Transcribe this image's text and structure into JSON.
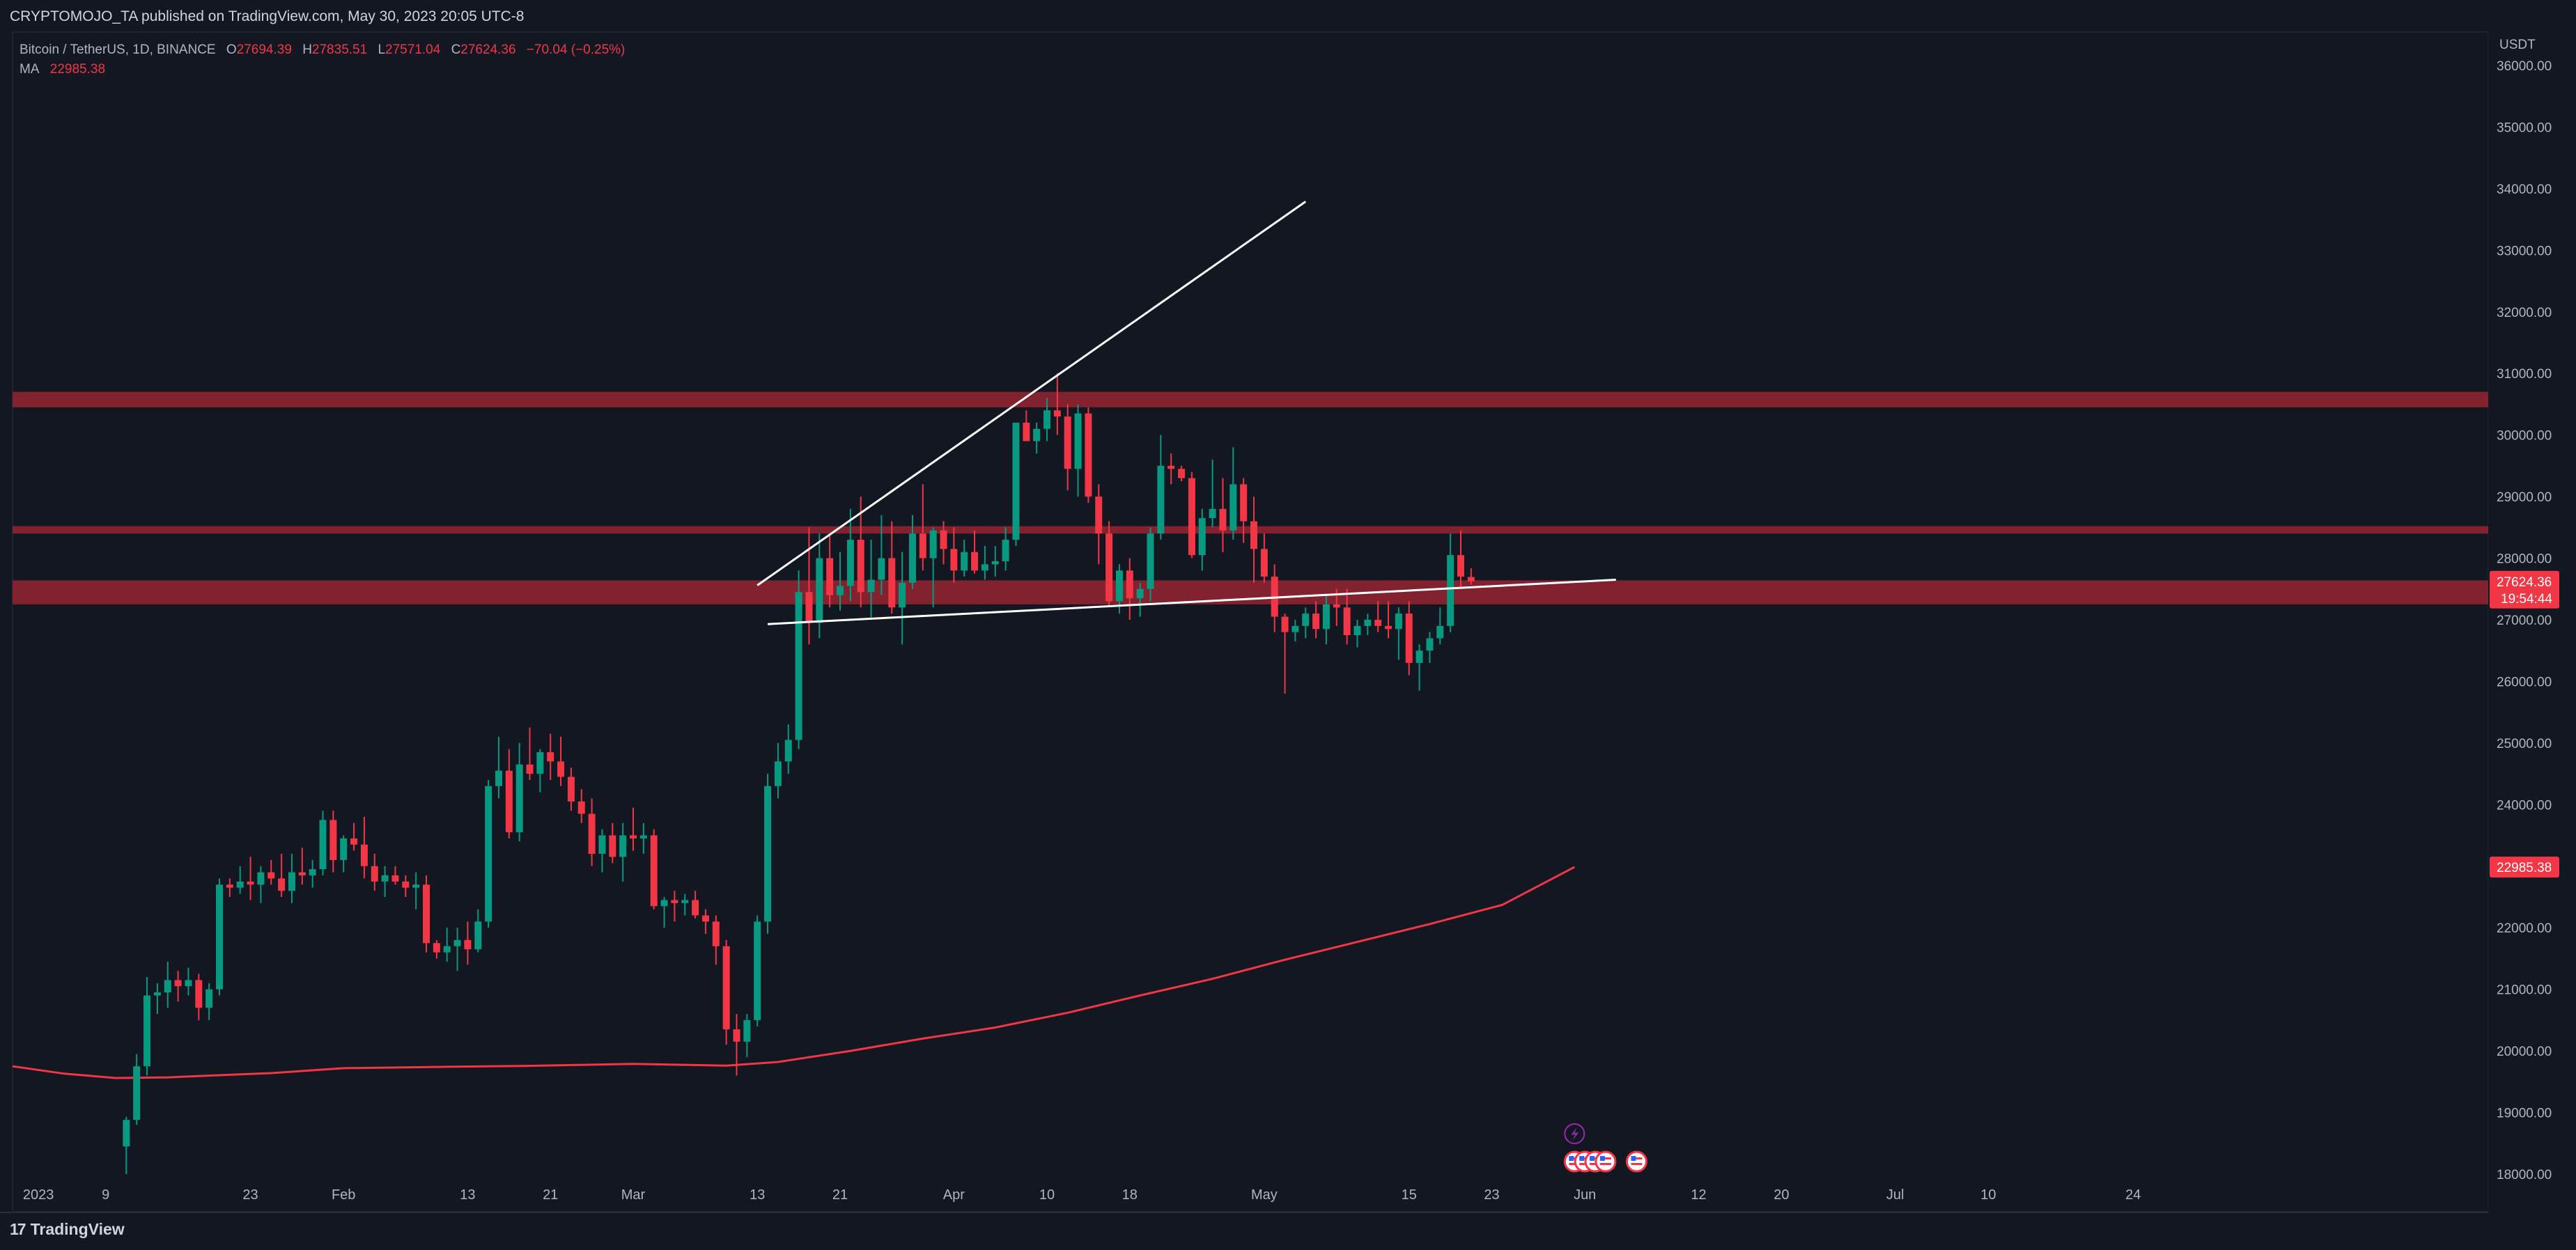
{
  "header": {
    "published_text": "CRYPTOMOJO_TA published on TradingView.com, May 30, 2023 20:05 UTC-8"
  },
  "legend": {
    "symbol": "Bitcoin / TetherUS, 1D, BINANCE",
    "open_label": "O",
    "open": "27694.39",
    "high_label": "H",
    "high": "27835.51",
    "low_label": "L",
    "low": "27571.04",
    "close_label": "C",
    "close": "27624.36",
    "change": "−70.04 (−0.25%)",
    "ma_label": "MA",
    "ma_value": "22985.38"
  },
  "footer": {
    "brand": "TradingView",
    "logo_glyph": "17"
  },
  "colors": {
    "background": "#131722",
    "up": "#089981",
    "down": "#f23645",
    "zone": "#8c2431",
    "ma": "#f23645",
    "trendline": "#ffffff",
    "axis_text": "#b2b5be",
    "event_purple": "#9c27b0"
  },
  "chart_data": {
    "type": "candlestick",
    "currency": "USDT",
    "ylim": [
      18000,
      36200
    ],
    "y_ticks": [
      "18000.00",
      "19000.00",
      "20000.00",
      "21000.00",
      "22000.00",
      "23000.00",
      "24000.00",
      "25000.00",
      "26000.00",
      "27000.00",
      "28000.00",
      "29000.00",
      "30000.00",
      "31000.00",
      "32000.00",
      "33000.00",
      "34000.00",
      "35000.00",
      "36000.00"
    ],
    "x_labels": [
      {
        "label": "2023",
        "date": "2023-01-01"
      },
      {
        "label": "9",
        "date": "2023-01-09"
      },
      {
        "label": "23",
        "date": "2023-01-23"
      },
      {
        "label": "Feb",
        "date": "2023-02-01"
      },
      {
        "label": "13",
        "date": "2023-02-13"
      },
      {
        "label": "21",
        "date": "2023-02-21"
      },
      {
        "label": "Mar",
        "date": "2023-03-01"
      },
      {
        "label": "13",
        "date": "2023-03-13"
      },
      {
        "label": "21",
        "date": "2023-03-21"
      },
      {
        "label": "Apr",
        "date": "2023-04-01"
      },
      {
        "label": "10",
        "date": "2023-04-10"
      },
      {
        "label": "18",
        "date": "2023-04-18"
      },
      {
        "label": "May",
        "date": "2023-05-01"
      },
      {
        "label": "15",
        "date": "2023-05-15"
      },
      {
        "label": "23",
        "date": "2023-05-23"
      },
      {
        "label": "Jun",
        "date": "2023-06-01"
      },
      {
        "label": "12",
        "date": "2023-06-12"
      },
      {
        "label": "20",
        "date": "2023-06-20"
      },
      {
        "label": "Jul",
        "date": "2023-07-01"
      },
      {
        "label": "10",
        "date": "2023-07-10"
      },
      {
        "label": "24",
        "date": "2023-07-24"
      }
    ],
    "x_range": [
      "2022-12-31",
      "2023-08-31"
    ],
    "candles_start": "2023-01-11",
    "candles": [
      [
        18450,
        18930,
        18000,
        18880
      ],
      [
        18880,
        19950,
        18800,
        19750
      ],
      [
        19750,
        21200,
        19600,
        20900
      ],
      [
        20900,
        21100,
        20600,
        20950
      ],
      [
        20950,
        21450,
        20700,
        21150
      ],
      [
        21150,
        21300,
        20800,
        21050
      ],
      [
        21050,
        21350,
        20900,
        21150
      ],
      [
        21150,
        21250,
        20500,
        20700
      ],
      [
        20700,
        21100,
        20500,
        21000
      ],
      [
        21000,
        22800,
        20900,
        22700
      ],
      [
        22700,
        22800,
        22500,
        22650
      ],
      [
        22650,
        23000,
        22550,
        22750
      ],
      [
        22750,
        23150,
        22450,
        22700
      ],
      [
        22700,
        23000,
        22400,
        22900
      ],
      [
        22900,
        23100,
        22700,
        22800
      ],
      [
        22800,
        23200,
        22500,
        22600
      ],
      [
        22600,
        23200,
        22400,
        22900
      ],
      [
        22900,
        23300,
        22700,
        22850
      ],
      [
        22850,
        23100,
        22650,
        22950
      ],
      [
        22950,
        23900,
        22850,
        23750
      ],
      [
        23750,
        23900,
        22900,
        23100
      ],
      [
        23100,
        23500,
        22900,
        23450
      ],
      [
        23450,
        23700,
        23250,
        23350
      ],
      [
        23350,
        23800,
        22800,
        23000
      ],
      [
        23000,
        23200,
        22600,
        22750
      ],
      [
        22750,
        23000,
        22500,
        22850
      ],
      [
        22850,
        23000,
        22700,
        22750
      ],
      [
        22750,
        22850,
        22500,
        22650
      ],
      [
        22650,
        22900,
        22300,
        22700
      ],
      [
        22700,
        22850,
        21600,
        21750
      ],
      [
        21750,
        21800,
        21500,
        21600
      ],
      [
        21600,
        22000,
        21450,
        21700
      ],
      [
        21700,
        22000,
        21300,
        21800
      ],
      [
        21800,
        22100,
        21400,
        21650
      ],
      [
        21650,
        22300,
        21600,
        22100
      ],
      [
        22100,
        24400,
        22000,
        24300
      ],
      [
        24300,
        25100,
        24100,
        24550
      ],
      [
        24550,
        24900,
        23450,
        23550
      ],
      [
        23550,
        25000,
        23400,
        24650
      ],
      [
        24650,
        25250,
        24400,
        24500
      ],
      [
        24500,
        24900,
        24200,
        24850
      ],
      [
        24850,
        25150,
        24400,
        24700
      ],
      [
        24700,
        25100,
        24300,
        24450
      ],
      [
        24450,
        24600,
        23900,
        24050
      ],
      [
        24050,
        24250,
        23700,
        23850
      ],
      [
        23850,
        24100,
        23000,
        23200
      ],
      [
        23200,
        23600,
        22900,
        23500
      ],
      [
        23500,
        23700,
        23050,
        23150
      ],
      [
        23150,
        23700,
        22750,
        23500
      ],
      [
        23500,
        23950,
        23250,
        23450
      ],
      [
        23450,
        23700,
        23200,
        23500
      ],
      [
        23500,
        23600,
        22300,
        22350
      ],
      [
        22350,
        22500,
        22000,
        22450
      ],
      [
        22450,
        22600,
        22100,
        22400
      ],
      [
        22400,
        22550,
        22200,
        22450
      ],
      [
        22450,
        22600,
        22150,
        22200
      ],
      [
        22200,
        22300,
        21900,
        22100
      ],
      [
        22100,
        22200,
        21400,
        21700
      ],
      [
        21700,
        21800,
        20100,
        20350
      ],
      [
        20350,
        20600,
        19600,
        20150
      ],
      [
        20150,
        20600,
        19900,
        20500
      ],
      [
        20500,
        22200,
        20400,
        22100
      ],
      [
        22100,
        24500,
        21900,
        24300
      ],
      [
        24300,
        25000,
        24100,
        24700
      ],
      [
        24700,
        25300,
        24500,
        25050
      ],
      [
        25050,
        27800,
        24900,
        27450
      ],
      [
        27450,
        28500,
        26600,
        26950
      ],
      [
        26950,
        28400,
        26700,
        28000
      ],
      [
        28000,
        28400,
        27200,
        27400
      ],
      [
        27400,
        28100,
        27150,
        27550
      ],
      [
        27550,
        28800,
        27300,
        28300
      ],
      [
        28300,
        29000,
        27200,
        27450
      ],
      [
        27450,
        28300,
        27000,
        27650
      ],
      [
        27650,
        28700,
        27400,
        28000
      ],
      [
        28000,
        28600,
        27100,
        27200
      ],
      [
        27200,
        28100,
        26600,
        27600
      ],
      [
        27600,
        28700,
        27500,
        28400
      ],
      [
        28400,
        29200,
        27800,
        28000
      ],
      [
        28000,
        28500,
        27200,
        28450
      ],
      [
        28450,
        28600,
        27900,
        28150
      ],
      [
        28150,
        28500,
        27600,
        27800
      ],
      [
        27800,
        28300,
        27700,
        28100
      ],
      [
        28100,
        28450,
        27750,
        27800
      ],
      [
        27800,
        28200,
        27650,
        27900
      ],
      [
        27900,
        28200,
        27700,
        27950
      ],
      [
        27950,
        28500,
        27800,
        28300
      ],
      [
        28300,
        30200,
        28200,
        30200
      ],
      [
        30200,
        30400,
        29900,
        29900
      ],
      [
        29900,
        30200,
        29700,
        30100
      ],
      [
        30100,
        30600,
        29900,
        30400
      ],
      [
        30400,
        31000,
        30000,
        30300
      ],
      [
        30300,
        30500,
        29100,
        29450
      ],
      [
        29450,
        30500,
        29000,
        30350
      ],
      [
        30350,
        30450,
        28900,
        29000
      ],
      [
        29000,
        29200,
        27900,
        28400
      ],
      [
        28400,
        28600,
        27200,
        27300
      ],
      [
        27300,
        27900,
        27100,
        27800
      ],
      [
        27800,
        28000,
        27000,
        27350
      ],
      [
        27350,
        27600,
        27050,
        27500
      ],
      [
        27500,
        28500,
        27300,
        28400
      ],
      [
        28400,
        30000,
        28300,
        29500
      ],
      [
        29500,
        29700,
        29200,
        29450
      ],
      [
        29450,
        29500,
        29250,
        29300
      ],
      [
        29300,
        29400,
        28000,
        28050
      ],
      [
        28050,
        28800,
        27800,
        28650
      ],
      [
        28650,
        29600,
        28500,
        28800
      ],
      [
        28800,
        29300,
        28100,
        28450
      ],
      [
        28450,
        29800,
        28300,
        29200
      ],
      [
        29200,
        29300,
        28250,
        28600
      ],
      [
        28600,
        29000,
        27600,
        28150
      ],
      [
        28150,
        28400,
        27600,
        27700
      ],
      [
        27700,
        27900,
        26800,
        27050
      ],
      [
        27050,
        27100,
        25800,
        26800
      ],
      [
        26800,
        27000,
        26650,
        26900
      ],
      [
        26900,
        27200,
        26700,
        27100
      ],
      [
        27100,
        27300,
        26700,
        26850
      ],
      [
        26850,
        27400,
        26600,
        27250
      ],
      [
        27250,
        27500,
        26900,
        27200
      ],
      [
        27200,
        27500,
        26600,
        26750
      ],
      [
        26750,
        27000,
        26550,
        26900
      ],
      [
        26900,
        27100,
        26750,
        27000
      ],
      [
        27000,
        27300,
        26800,
        26900
      ],
      [
        26900,
        27300,
        26700,
        26850
      ],
      [
        26850,
        27200,
        26350,
        27100
      ],
      [
        27100,
        27300,
        26100,
        26300
      ],
      [
        26300,
        26600,
        25850,
        26500
      ],
      [
        26500,
        26800,
        26300,
        26700
      ],
      [
        26700,
        27200,
        26600,
        26900
      ],
      [
        26900,
        28400,
        26800,
        28050
      ],
      [
        28050,
        28450,
        27500,
        27700
      ],
      [
        27694.39,
        27835.51,
        27571.04,
        27624.36
      ]
    ],
    "ma": [
      {
        "date": "2022-12-31",
        "value": 19750
      },
      {
        "date": "2023-01-05",
        "value": 19630
      },
      {
        "date": "2023-01-10",
        "value": 19560
      },
      {
        "date": "2023-01-15",
        "value": 19570
      },
      {
        "date": "2023-01-25",
        "value": 19640
      },
      {
        "date": "2023-02-01",
        "value": 19720
      },
      {
        "date": "2023-02-10",
        "value": 19740
      },
      {
        "date": "2023-02-20",
        "value": 19760
      },
      {
        "date": "2023-03-01",
        "value": 19790
      },
      {
        "date": "2023-03-10",
        "value": 19760
      },
      {
        "date": "2023-03-15",
        "value": 19820
      },
      {
        "date": "2023-03-22",
        "value": 20000
      },
      {
        "date": "2023-03-29",
        "value": 20200
      },
      {
        "date": "2023-04-05",
        "value": 20380
      },
      {
        "date": "2023-04-12",
        "value": 20620
      },
      {
        "date": "2023-04-19",
        "value": 20900
      },
      {
        "date": "2023-04-26",
        "value": 21170
      },
      {
        "date": "2023-05-03",
        "value": 21480
      },
      {
        "date": "2023-05-10",
        "value": 21770
      },
      {
        "date": "2023-05-17",
        "value": 22060
      },
      {
        "date": "2023-05-24",
        "value": 22370
      },
      {
        "date": "2023-05-31",
        "value": 22985.38
      }
    ],
    "zones": [
      {
        "from": 30450,
        "to": 30700
      },
      {
        "from": 28400,
        "to": 28520
      },
      {
        "from": 27250,
        "to": 27640
      }
    ],
    "trendlines": [
      {
        "x1": "2023-03-13",
        "y1": 27560,
        "x2": "2023-05-05",
        "y2": 33790
      },
      {
        "x1": "2023-03-14",
        "y1": 26930,
        "x2": "2023-06-04",
        "y2": 27650
      }
    ],
    "price_labels": [
      {
        "value": 27624.36,
        "text": "27624.36",
        "sub": "19:54:44",
        "color": "#f23645"
      },
      {
        "value": 22985.38,
        "text": "22985.38",
        "color": "#f23645"
      }
    ],
    "events": [
      {
        "date": "2023-05-31",
        "icon": "lightning-icon",
        "row": 1
      },
      {
        "date": "2023-05-31",
        "icon": "us-flag-icon",
        "row": 2
      },
      {
        "date": "2023-06-01",
        "icon": "us-flag-icon",
        "row": 2
      },
      {
        "date": "2023-06-02",
        "icon": "us-flag-icon",
        "row": 2
      },
      {
        "date": "2023-06-03",
        "icon": "us-flag-icon",
        "row": 2
      },
      {
        "date": "2023-06-06",
        "icon": "us-flag-icon",
        "row": 2
      }
    ]
  }
}
